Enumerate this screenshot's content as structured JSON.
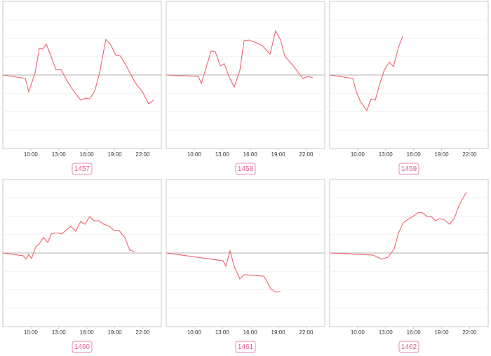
{
  "chart_data": [
    {
      "type": "line",
      "title": "1457",
      "color": "#f0626b",
      "xlim": [
        7,
        24
      ],
      "ylim": [
        -4,
        4
      ],
      "grid": true,
      "xticks": [
        {
          "value": 10,
          "label": "10:00"
        },
        {
          "value": 13,
          "label": "13:00"
        },
        {
          "value": 16,
          "label": "16:00"
        },
        {
          "value": 19,
          "label": "19:00"
        },
        {
          "value": 22,
          "label": "22:00"
        }
      ],
      "yticks": [
        -3,
        -2,
        -1,
        0,
        1,
        2,
        3
      ],
      "x": [
        7.0,
        9.41,
        9.78,
        10.46,
        10.91,
        11.29,
        11.66,
        12.11,
        12.71,
        13.24,
        13.84,
        14.44,
        15.35,
        15.87,
        16.32,
        16.85,
        17.38,
        18.05,
        18.58,
        19.11,
        19.63,
        20.23,
        21.2,
        21.96,
        22.64,
        23.17
      ],
      "values": [
        0,
        -0.19,
        -0.91,
        0.11,
        1.45,
        1.41,
        1.68,
        1.1,
        0.27,
        0.3,
        -0.27,
        -0.76,
        -1.37,
        -1.26,
        -1.3,
        -0.88,
        0.11,
        1.94,
        1.64,
        1.07,
        1.03,
        0.5,
        -0.42,
        -0.91,
        -1.56,
        -1.37
      ]
    },
    {
      "type": "line",
      "title": "1458",
      "color": "#f0626b",
      "xlim": [
        7,
        24
      ],
      "ylim": [
        -4,
        4
      ],
      "grid": true,
      "xticks": [
        {
          "value": 10,
          "label": "10:00"
        },
        {
          "value": 13,
          "label": "13:00"
        },
        {
          "value": 16,
          "label": "16:00"
        },
        {
          "value": 19,
          "label": "19:00"
        },
        {
          "value": 22,
          "label": "22:00"
        }
      ],
      "yticks": [
        -3,
        -2,
        -1,
        0,
        1,
        2,
        3
      ],
      "x": [
        7.0,
        10.46,
        10.76,
        11.29,
        11.81,
        12.26,
        12.8,
        13.23,
        13.77,
        14.29,
        14.89,
        15.35,
        15.87,
        16.47,
        17.3,
        18.13,
        18.73,
        19.26,
        19.71,
        20.62,
        21.14,
        21.66,
        22.19,
        22.71
      ],
      "values": [
        0,
        -0.08,
        -0.46,
        0.42,
        1.3,
        1.26,
        0.5,
        0.61,
        -0.15,
        -0.65,
        0.23,
        1.87,
        1.9,
        1.79,
        1.6,
        1.14,
        2.4,
        1.9,
        1.03,
        0.5,
        0.15,
        -0.19,
        -0.08,
        -0.15
      ]
    },
    {
      "type": "line",
      "title": "1459",
      "color": "#f0626b",
      "xlim": [
        7,
        24
      ],
      "ylim": [
        -4,
        4
      ],
      "grid": true,
      "xticks": [
        {
          "value": 10,
          "label": "10:00"
        },
        {
          "value": 13,
          "label": "13:00"
        },
        {
          "value": 16,
          "label": "16:00"
        },
        {
          "value": 19,
          "label": "19:00"
        },
        {
          "value": 22,
          "label": "22:00"
        }
      ],
      "yticks": [
        -3,
        -2,
        -1,
        0,
        1,
        2,
        3
      ],
      "x": [
        7.0,
        9.48,
        9.86,
        10.31,
        10.98,
        11.44,
        11.89,
        12.34,
        12.86,
        13.39,
        13.84,
        14.37,
        14.82
      ],
      "values": [
        0,
        -0.19,
        -0.91,
        -1.45,
        -1.94,
        -1.3,
        -1.37,
        -0.53,
        0.27,
        0.69,
        0.46,
        1.49,
        2.1
      ]
    },
    {
      "type": "line",
      "title": "1460",
      "color": "#f0626b",
      "xlim": [
        7,
        24
      ],
      "ylim": [
        -4,
        4
      ],
      "grid": true,
      "xticks": [
        {
          "value": 10,
          "label": "10:00"
        },
        {
          "value": 13,
          "label": "13:00"
        },
        {
          "value": 16,
          "label": "16:00"
        },
        {
          "value": 19,
          "label": "19:00"
        },
        {
          "value": 22,
          "label": "22:00"
        }
      ],
      "yticks": [
        -3,
        -2,
        -1,
        0,
        1,
        2,
        3
      ],
      "x": [
        7.0,
        9.18,
        9.48,
        9.78,
        10.08,
        10.53,
        10.91,
        11.36,
        11.81,
        12.19,
        12.71,
        13.32,
        13.84,
        14.29,
        14.82,
        15.35,
        15.8,
        16.32,
        16.77,
        17.3,
        17.83,
        18.43,
        18.95,
        19.48,
        20.08,
        20.61,
        21.14
      ],
      "values": [
        0,
        -0.15,
        -0.34,
        -0.08,
        -0.3,
        0.34,
        0.5,
        0.84,
        0.57,
        1.03,
        1.1,
        1.03,
        1.26,
        1.45,
        1.18,
        1.71,
        1.56,
        1.98,
        1.75,
        1.75,
        1.56,
        1.45,
        1.22,
        1.22,
        0.84,
        0.15,
        0.08
      ]
    },
    {
      "type": "line",
      "title": "1461",
      "color": "#f0626b",
      "xlim": [
        7,
        24
      ],
      "ylim": [
        -4,
        4
      ],
      "grid": true,
      "xticks": [
        {
          "value": 10,
          "label": "10:00"
        },
        {
          "value": 13,
          "label": "13:00"
        },
        {
          "value": 16,
          "label": "16:00"
        },
        {
          "value": 19,
          "label": "19:00"
        },
        {
          "value": 22,
          "label": "22:00"
        }
      ],
      "yticks": [
        -3,
        -2,
        -1,
        0,
        1,
        2,
        3
      ],
      "x": [
        7.0,
        13.09,
        13.39,
        13.84,
        14.29,
        14.89,
        15.35,
        17.45,
        17.75,
        18.2,
        18.73,
        19.26
      ],
      "values": [
        0,
        -0.42,
        -0.72,
        0.11,
        -0.72,
        -1.41,
        -1.18,
        -1.26,
        -1.49,
        -1.94,
        -2.13,
        -2.1
      ]
    },
    {
      "type": "line",
      "title": "1462",
      "color": "#f0626b",
      "xlim": [
        7,
        24
      ],
      "ylim": [
        -4,
        4
      ],
      "grid": true,
      "xticks": [
        {
          "value": 10,
          "label": "10:00"
        },
        {
          "value": 13,
          "label": "13:00"
        },
        {
          "value": 16,
          "label": "16:00"
        },
        {
          "value": 19,
          "label": "19:00"
        },
        {
          "value": 22,
          "label": "22:00"
        }
      ],
      "yticks": [
        -3,
        -2,
        -1,
        0,
        1,
        2,
        3
      ],
      "x": [
        7.0,
        11.59,
        12.64,
        13.24,
        13.92,
        14.37,
        14.89,
        15.5,
        16.02,
        16.55,
        17.0,
        17.45,
        17.9,
        18.35,
        18.8,
        19.33,
        19.86,
        20.38,
        20.91,
        21.66
      ],
      "values": [
        0,
        -0.11,
        -0.34,
        -0.23,
        0.23,
        1.07,
        1.64,
        1.87,
        2.02,
        2.21,
        2.17,
        1.98,
        1.98,
        1.75,
        1.87,
        1.79,
        1.56,
        1.9,
        2.63,
        3.31
      ]
    }
  ]
}
